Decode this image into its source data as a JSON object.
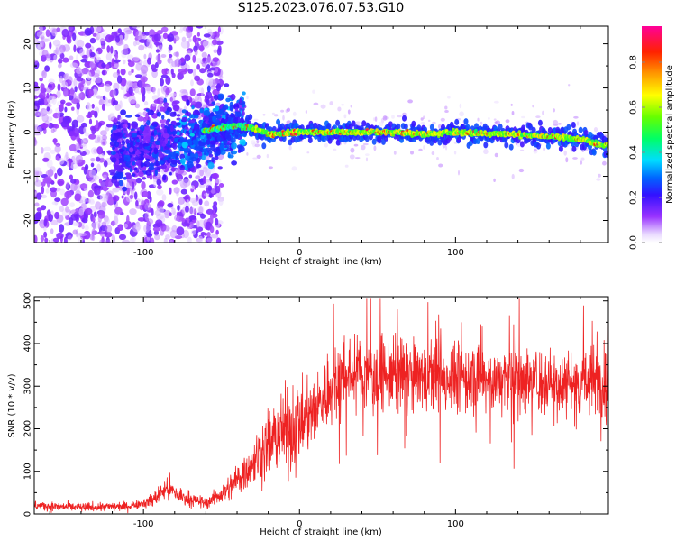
{
  "title": "S125.2023.076.07.53.G10",
  "chart_data": [
    {
      "type": "heatmap",
      "xlabel": "Height of straight line (km)",
      "ylabel": "Frequency (Hz)",
      "xlim": [
        -170,
        198
      ],
      "ylim": [
        -25,
        24
      ],
      "x_ticks": [
        -100,
        0,
        100
      ],
      "x_tick_labels": [
        "-100",
        "0",
        "100"
      ],
      "y_ticks": [
        -20,
        -10,
        0,
        10,
        20
      ],
      "y_tick_labels": [
        "-20",
        "-10",
        "0",
        "10",
        "20"
      ],
      "colorbar": {
        "label": "Normalized spectral amplitude",
        "range": [
          0.0,
          0.96
        ],
        "ticks": [
          0.0,
          0.2,
          0.4,
          0.6,
          0.8
        ],
        "tick_labels": [
          "0.0",
          "0.2",
          "0.4",
          "0.6",
          "0.8"
        ],
        "colormap": "rainbow"
      },
      "ridge_centerline": {
        "x": [
          -60,
          -40,
          -30,
          -20,
          0,
          20,
          40,
          60,
          80,
          100,
          120,
          140,
          160,
          180,
          195
        ],
        "y": [
          0.3,
          1.5,
          1.0,
          -0.5,
          0.0,
          0.0,
          0.0,
          0.0,
          -0.5,
          0.0,
          -0.3,
          -0.5,
          -1.0,
          -1.5,
          -3.0
        ]
      },
      "grid": false
    },
    {
      "type": "line",
      "xlabel": "Height of straight line (km)",
      "ylabel": "SNR (10 * v/v)",
      "xlim": [
        -170,
        198
      ],
      "ylim": [
        0,
        510
      ],
      "x_ticks": [
        -100,
        0,
        100
      ],
      "x_tick_labels": [
        "-100",
        "0",
        "100"
      ],
      "y_ticks": [
        0,
        100,
        200,
        300,
        400,
        500
      ],
      "y_tick_labels": [
        "0",
        "100",
        "200",
        "300",
        "400",
        "500"
      ],
      "line_color": "#ee2222",
      "trend": {
        "x": [
          -170,
          -140,
          -110,
          -95,
          -85,
          -75,
          -60,
          -45,
          -30,
          -15,
          0,
          10,
          15,
          20,
          25,
          40,
          60,
          80,
          100,
          120,
          140,
          160,
          180,
          198
        ],
        "y": [
          20,
          15,
          18,
          30,
          60,
          40,
          25,
          60,
          120,
          180,
          210,
          240,
          270,
          300,
          320,
          330,
          325,
          320,
          320,
          315,
          315,
          310,
          310,
          310
        ]
      },
      "grid": false
    }
  ]
}
